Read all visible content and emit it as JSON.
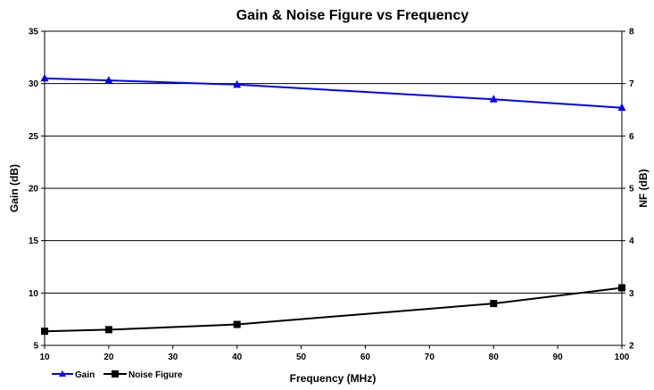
{
  "chart_data": {
    "type": "line",
    "title": "Gain & Noise Figure vs Frequency",
    "xlabel": "Frequency (MHz)",
    "ylabel": "Gain (dB)",
    "y2label": "NF (dB)",
    "xlim": [
      10,
      100
    ],
    "ylim": [
      5,
      35
    ],
    "y2lim": [
      2,
      8
    ],
    "xticks": [
      "10",
      "20",
      "30",
      "40",
      "50",
      "60",
      "70",
      "80",
      "90",
      "100"
    ],
    "yticks": [
      "5",
      "10",
      "15",
      "20",
      "25",
      "30",
      "35"
    ],
    "y2ticks": [
      "2",
      "3",
      "4",
      "5",
      "6",
      "7",
      "8"
    ],
    "grid": "horizontal",
    "legend": "bottom-left",
    "series": [
      {
        "name": "Gain",
        "axis": "left",
        "color": "#0000FF",
        "marker": "triangle",
        "x": [
          10,
          20,
          40,
          80,
          100
        ],
        "values": [
          30.5,
          30.3,
          29.9,
          28.5,
          27.7
        ]
      },
      {
        "name": "Noise Figure",
        "axis": "right",
        "color": "#000000",
        "marker": "square",
        "x": [
          10,
          20,
          40,
          80,
          100
        ],
        "values": [
          2.27,
          2.3,
          2.4,
          2.8,
          3.1
        ]
      }
    ]
  }
}
